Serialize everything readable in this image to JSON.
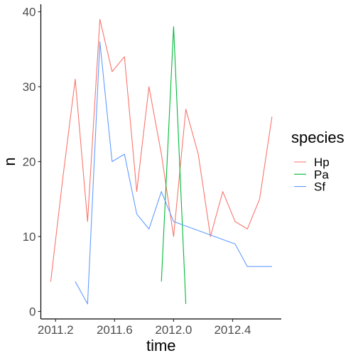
{
  "chart_data": {
    "type": "line",
    "title": "",
    "xlabel": "time",
    "ylabel": "n",
    "xlim": [
      2011.1,
      2012.73
    ],
    "ylim": [
      -1,
      41
    ],
    "x_ticks": [
      2011.2,
      2011.6,
      2012.0,
      2012.4
    ],
    "x_tick_labels": [
      "2011.2",
      "2011.6",
      "2012.0",
      "2012.4"
    ],
    "y_ticks": [
      0,
      10,
      20,
      30,
      40
    ],
    "y_tick_labels": [
      "0",
      "10",
      "20",
      "30",
      "40"
    ],
    "grid": false,
    "legend": {
      "title": "species",
      "position": "right"
    },
    "series": [
      {
        "name": "Hp",
        "color": "#F8766D",
        "x": [
          2011.167,
          2011.25,
          2011.333,
          2011.417,
          2011.5,
          2011.583,
          2011.667,
          2011.75,
          2011.833,
          2011.917,
          2012.0,
          2012.083,
          2012.167,
          2012.25,
          2012.333,
          2012.417,
          2012.5,
          2012.583,
          2012.667
        ],
        "y": [
          4,
          18,
          31,
          12,
          39,
          32,
          34,
          16,
          30,
          21,
          10,
          27,
          21,
          10,
          16,
          12,
          11,
          15,
          26
        ]
      },
      {
        "name": "Pa",
        "color": "#00BA38",
        "x": [
          2011.917,
          2012.0,
          2012.083
        ],
        "y": [
          4,
          38,
          1
        ]
      },
      {
        "name": "Sf",
        "color": "#619CFF",
        "x": [
          2011.333,
          2011.417,
          2011.5,
          2011.583,
          2011.667,
          2011.75,
          2011.833,
          2011.917,
          2012.0,
          2012.417,
          2012.5,
          2012.667
        ],
        "y": [
          4,
          1,
          36,
          20,
          21,
          13,
          11,
          16,
          12,
          9,
          6,
          6
        ]
      }
    ]
  }
}
